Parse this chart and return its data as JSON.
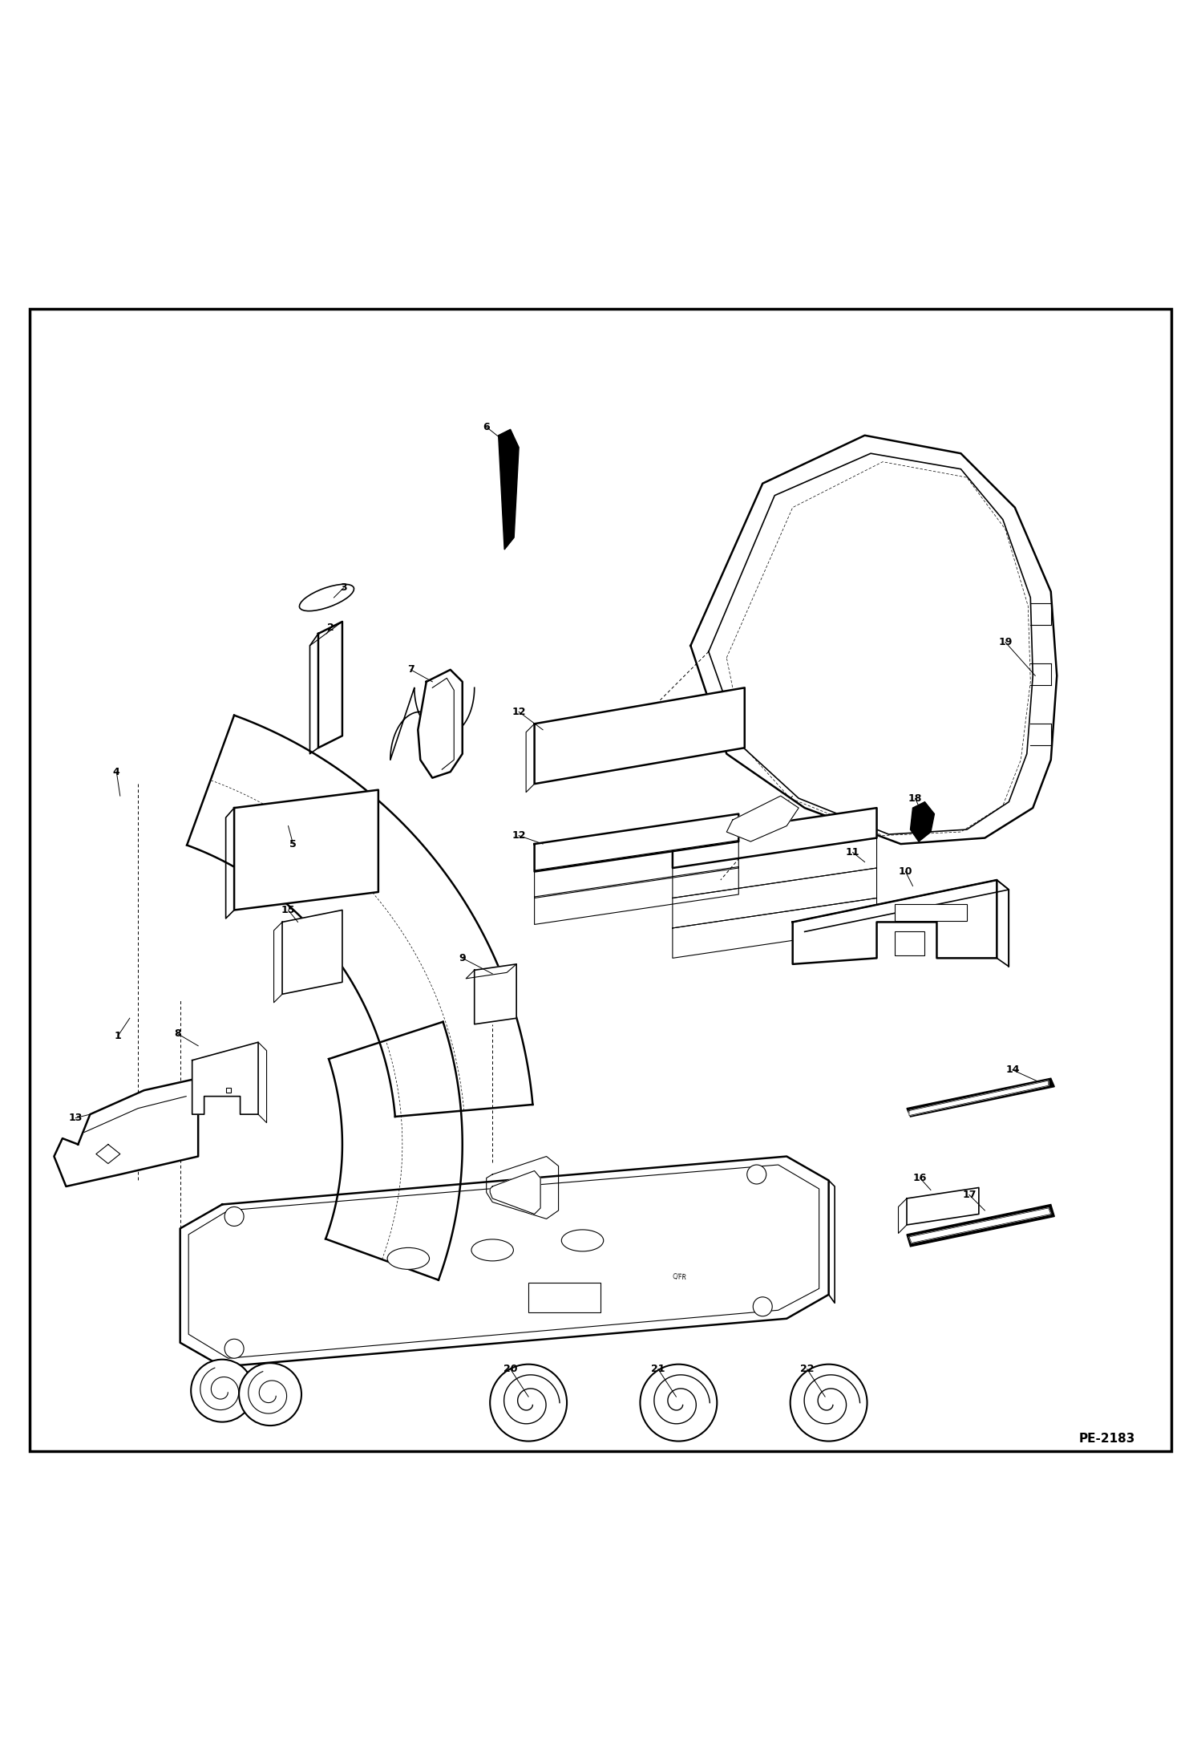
{
  "page_code": "PE-2183",
  "background_color": "#ffffff",
  "border_color": "#000000",
  "line_color": "#000000",
  "figsize": [
    14.98,
    21.94
  ],
  "dpi": 100
}
